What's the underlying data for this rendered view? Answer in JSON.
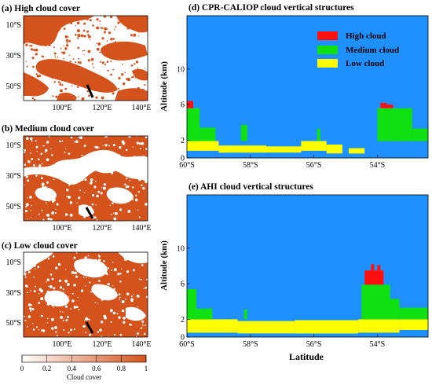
{
  "chart_data": [
    {
      "type": "map",
      "title": "(a) High cloud cover",
      "xtick_labels": [
        "100°E",
        "120°E",
        "140°E"
      ],
      "ytick_labels": [
        "10°S",
        "30°S",
        "50°S"
      ],
      "fill_color": "#d4521c",
      "coverage": 0.33
    },
    {
      "type": "map",
      "title": "(b) Medium cloud cover",
      "xtick_labels": [
        "100°E",
        "120°E",
        "140°E"
      ],
      "ytick_labels": [
        "10°S",
        "30°S",
        "50°S"
      ],
      "fill_color": "#d4521c",
      "coverage": 0.55
    },
    {
      "type": "map",
      "title": "(c) Low cloud cover",
      "xtick_labels": [
        "100°E",
        "120°E",
        "140°E"
      ],
      "ytick_labels": [
        "10°S",
        "30°S",
        "50°S"
      ],
      "fill_color": "#d4521c",
      "coverage": 0.68
    },
    {
      "type": "colorbar",
      "label": "Cloud cover",
      "ticks": [
        0,
        0.2,
        0.4,
        0.6,
        0.8,
        1
      ],
      "tick_labels": [
        "0",
        "0.2",
        "0.4",
        "0.6",
        "0.8",
        "1"
      ],
      "range": [
        0,
        1
      ],
      "color_low": "#ffffff",
      "color_high": "#d4521c"
    },
    {
      "type": "area",
      "title": "(d) CPR-CALIOP cloud vertical structures",
      "ylabel": "Altitude (km)",
      "xlim": [
        60,
        52.4
      ],
      "ylim": [
        0,
        16
      ],
      "xticks": [
        60,
        58,
        56,
        54
      ],
      "xtick_labels": [
        "60°S",
        "58°S",
        "56°S",
        "54°S"
      ],
      "yticks": [
        0,
        2,
        6,
        10
      ],
      "ytick_labels": [
        "0",
        "2",
        "6",
        "10"
      ],
      "background_color": "#1e90ff",
      "legend": [
        {
          "label": "High cloud",
          "color": "#ff1010"
        },
        {
          "label": "Medium cloud",
          "color": "#10e010"
        },
        {
          "label": "Low cloud",
          "color": "#ffff00"
        }
      ],
      "layers": [
        {
          "name": "Low cloud",
          "segments": [
            [
              60,
              59.0,
              0.8,
              1.9
            ],
            [
              59.0,
              57.5,
              0.6,
              1.4
            ],
            [
              57.5,
              56.4,
              0.6,
              1.3
            ],
            [
              56.4,
              55.6,
              0.8,
              1.9
            ],
            [
              55.6,
              55.1,
              0.5,
              1.5
            ],
            [
              54.9,
              54.4,
              0.5,
              1.1
            ]
          ]
        },
        {
          "name": "Medium cloud",
          "segments": [
            [
              60,
              59.6,
              1.9,
              5.6
            ],
            [
              59.6,
              59.1,
              1.9,
              3.4
            ],
            [
              58.3,
              58.1,
              1.9,
              3.7
            ],
            [
              55.9,
              55.8,
              1.9,
              3.3
            ],
            [
              54.0,
              52.9,
              1.9,
              5.6
            ],
            [
              52.9,
              52.4,
              1.9,
              3.3
            ]
          ]
        },
        {
          "name": "High cloud",
          "segments": [
            [
              60,
              59.8,
              5.6,
              6.4
            ],
            [
              53.9,
              53.7,
              5.6,
              6.2
            ],
            [
              53.7,
              53.5,
              5.6,
              6.0
            ]
          ]
        }
      ]
    },
    {
      "type": "area",
      "title": "(e) AHI cloud vertical structures",
      "xlabel": "Latitude",
      "ylabel": "Altitude (km)",
      "xlim": [
        60,
        52.4
      ],
      "ylim": [
        0,
        16
      ],
      "xticks": [
        60,
        58,
        56,
        54
      ],
      "xtick_labels": [
        "60°S",
        "58°S",
        "56°S",
        "54°S"
      ],
      "yticks": [
        0,
        2,
        6,
        10
      ],
      "ytick_labels": [
        "0",
        "2",
        "6",
        "10"
      ],
      "background_color": "#1e90ff",
      "layers": [
        {
          "name": "Low cloud",
          "segments": [
            [
              60,
              58.4,
              0.5,
              2.0
            ],
            [
              58.4,
              56.6,
              0.4,
              1.8
            ],
            [
              56.6,
              54.6,
              0.4,
              1.9
            ],
            [
              54.6,
              53.3,
              0.5,
              2.0
            ],
            [
              53.3,
              52.4,
              0.8,
              2.0
            ]
          ]
        },
        {
          "name": "Medium cloud",
          "segments": [
            [
              60,
              59.7,
              2.0,
              5.4
            ],
            [
              59.7,
              59.2,
              2.0,
              3.2
            ],
            [
              58.2,
              58.1,
              2.0,
              3.1
            ],
            [
              54.5,
              53.6,
              2.0,
              5.9
            ],
            [
              53.6,
              53.3,
              2.0,
              4.3
            ],
            [
              53.3,
              52.4,
              2.0,
              3.3
            ]
          ]
        },
        {
          "name": "High cloud",
          "segments": [
            [
              54.4,
              53.8,
              5.9,
              7.5
            ],
            [
              54.2,
              54.1,
              5.9,
              8.2
            ],
            [
              54.0,
              53.9,
              5.9,
              8.1
            ]
          ]
        }
      ]
    }
  ]
}
